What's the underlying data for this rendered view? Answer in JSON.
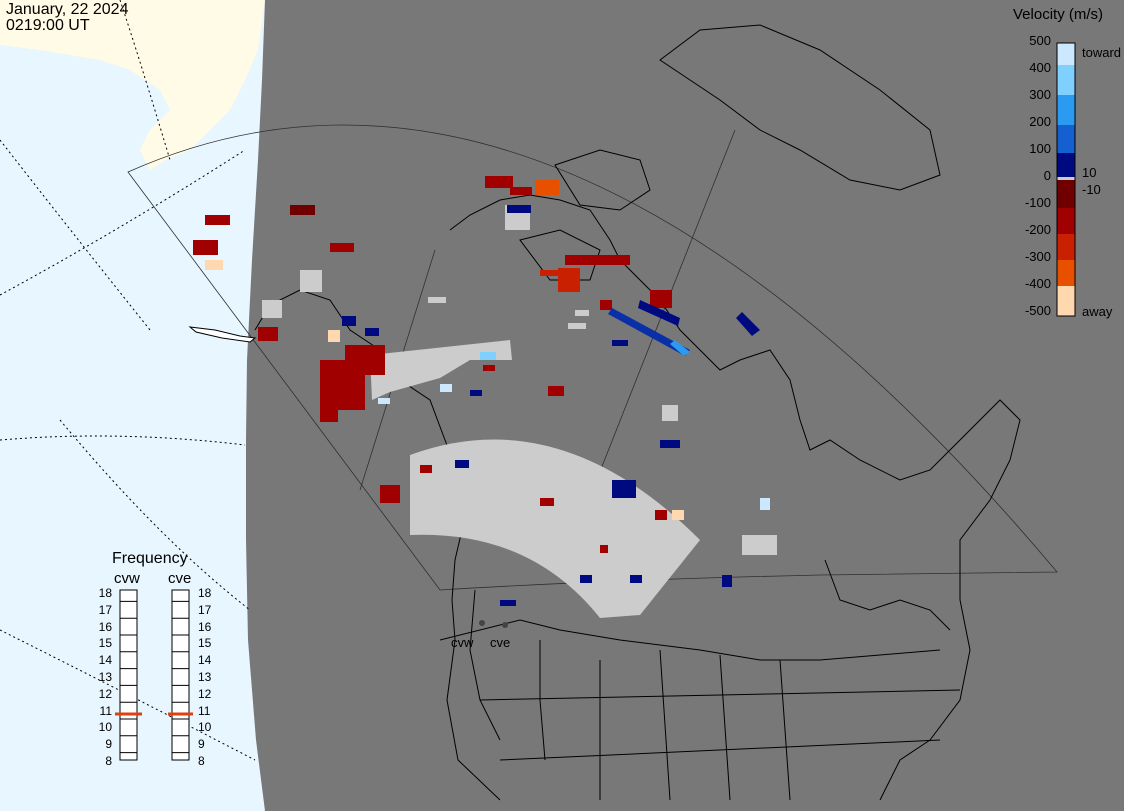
{
  "header": {
    "date": "January, 22 2024",
    "time": "0219:00 UT"
  },
  "colorbar": {
    "title": "Velocity (m/s)",
    "ticks": [
      "500",
      "400",
      "300",
      "200",
      "100",
      "0",
      "-100",
      "-200",
      "-300",
      "-400",
      "-500"
    ],
    "inner_ticks": [
      "10",
      "-10"
    ],
    "toward_label": "toward",
    "away_label": "away",
    "colors": {
      "toward_scale": [
        "#cce8ff",
        "#7fcfff",
        "#2a9bf0",
        "#1560d0",
        "#0a30a8",
        "#000a80"
      ],
      "away_scale": [
        "#700000",
        "#a00000",
        "#c82000",
        "#e85000",
        "#ff8c10",
        "#ffd8b0"
      ],
      "ground_scatter": "#cccccc"
    }
  },
  "frequency": {
    "title": "Frequency",
    "radars": [
      {
        "name": "cvw",
        "level_mhz": 10.8
      },
      {
        "name": "cve",
        "level_mhz": 10.8
      }
    ],
    "scale": [
      "18",
      "17",
      "16",
      "15",
      "14",
      "13",
      "12",
      "11",
      "10",
      "9",
      "8"
    ],
    "marker_color": "#e04010"
  },
  "sites": [
    {
      "name": "cvw"
    },
    {
      "name": "cve"
    }
  ],
  "map_colors": {
    "ocean": "#e8f6ff",
    "land": "#787878",
    "night_land": "#fffbe6",
    "outline": "#000000"
  }
}
